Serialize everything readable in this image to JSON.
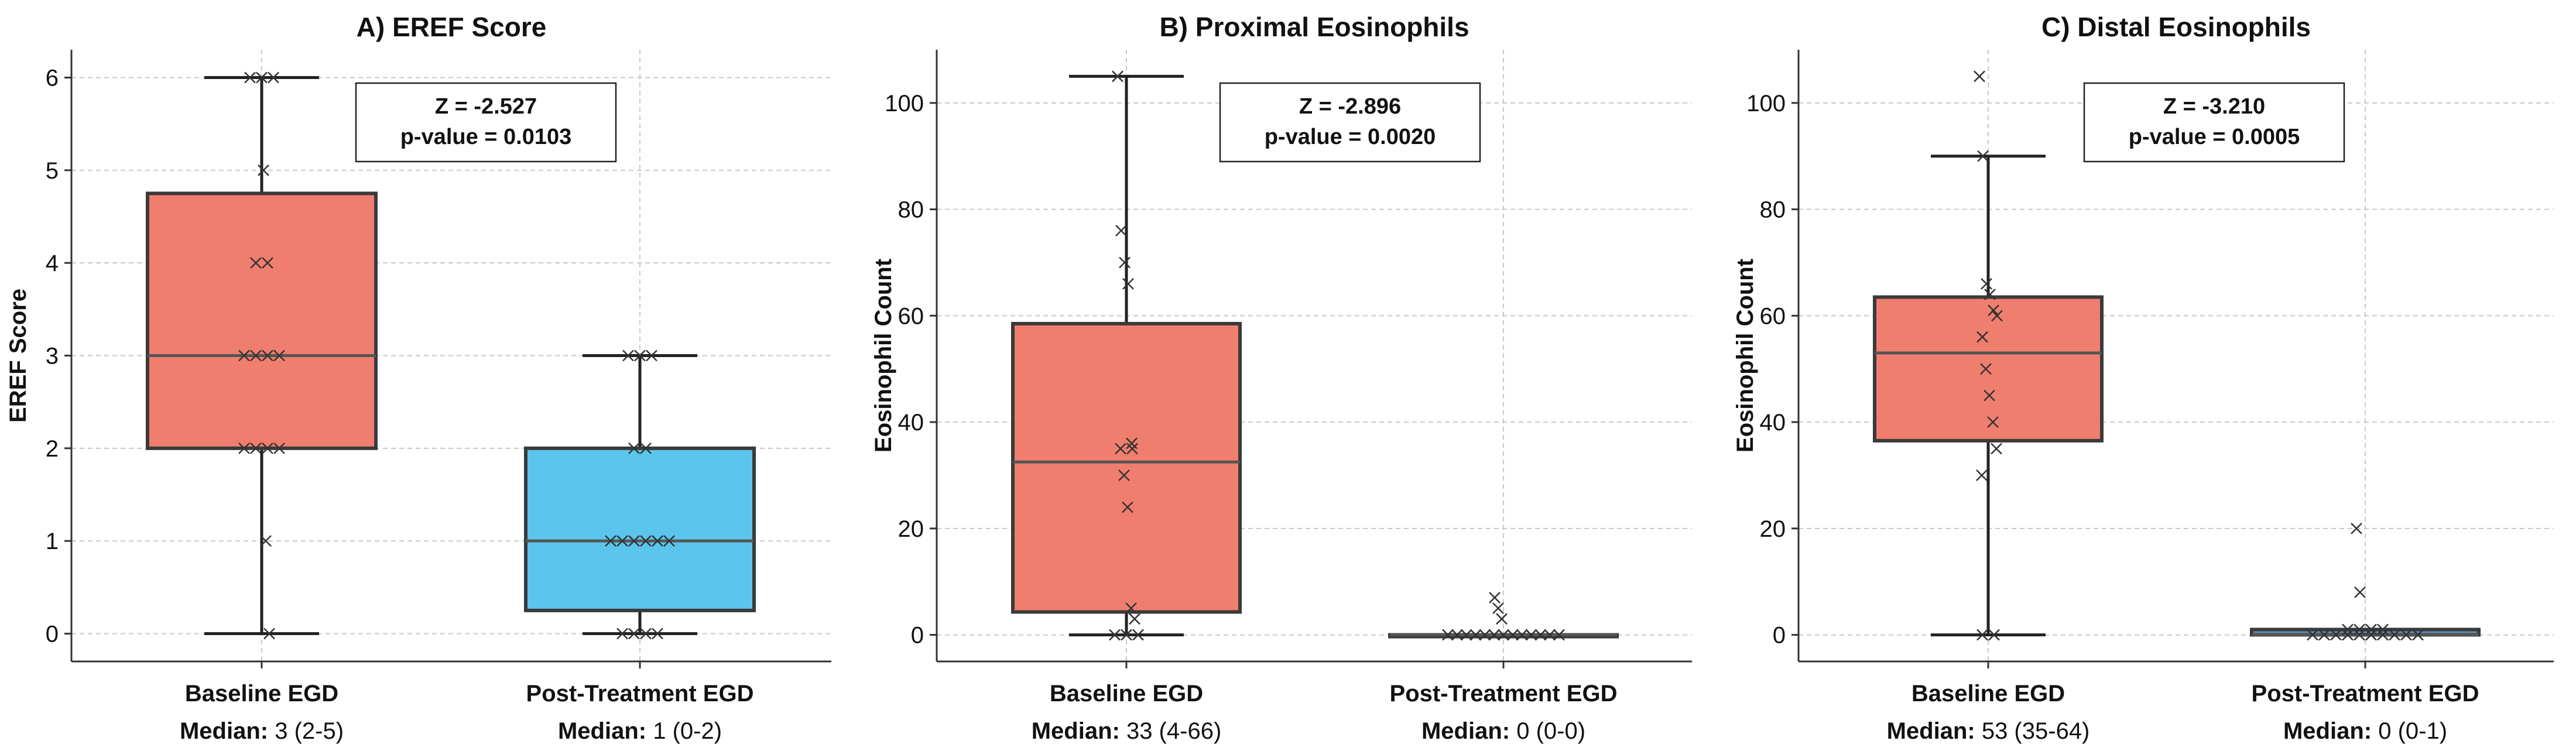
{
  "chart_data": [
    {
      "type": "box",
      "title": "A) EREF Score",
      "ylabel": "EREF Score",
      "ylim": [
        -0.3,
        6.3
      ],
      "yticks": [
        0,
        1,
        2,
        3,
        4,
        5,
        6
      ],
      "grid": true,
      "stat_box": {
        "z_text": "Z = -2.527",
        "p_text": "p-value = 0.0103"
      },
      "categories": [
        "Baseline EGD",
        "Post-Treatment EGD"
      ],
      "series": [
        {
          "category": "Baseline EGD",
          "color": "#f07e6e",
          "median_prefix": "Median:",
          "median_text": "3 (2-5)",
          "box": {
            "whisker_low": 0,
            "q1": 2,
            "median": 3,
            "q3": 4.75,
            "whisker_high": 6
          },
          "points": [
            6,
            6,
            6,
            5,
            4,
            4,
            3,
            3,
            3,
            3,
            2,
            2,
            2,
            2,
            1,
            0
          ]
        },
        {
          "category": "Post-Treatment EGD",
          "color": "#5bc5eb",
          "median_prefix": "Median:",
          "median_text": "1 (0-2)",
          "box": {
            "whisker_low": 0,
            "q1": 0.25,
            "median": 1,
            "q3": 2,
            "whisker_high": 3
          },
          "points": [
            3,
            3,
            3,
            2,
            2,
            1,
            1,
            1,
            1,
            1,
            1,
            0,
            0,
            0,
            0
          ]
        }
      ]
    },
    {
      "type": "box",
      "title": "B) Proximal Eosinophils",
      "ylabel": "Eosinophil Count",
      "ylim": [
        -5,
        110
      ],
      "yticks": [
        0,
        20,
        40,
        60,
        80,
        100
      ],
      "grid": true,
      "stat_box": {
        "z_text": "Z = -2.896",
        "p_text": "p-value = 0.0020"
      },
      "categories": [
        "Baseline EGD",
        "Post-Treatment EGD"
      ],
      "series": [
        {
          "category": "Baseline EGD",
          "color": "#f07e6e",
          "median_prefix": "Median:",
          "median_text": "33 (4-66)",
          "box": {
            "whisker_low": 0,
            "q1": 4.3,
            "median": 32.5,
            "q3": 58.5,
            "whisker_high": 105
          },
          "points": [
            105,
            76,
            70,
            66,
            36,
            35,
            35,
            30,
            24,
            5,
            3,
            0,
            0,
            0
          ]
        },
        {
          "category": "Post-Treatment EGD",
          "color": "#5bc5eb",
          "median_prefix": "Median:",
          "median_text": "0 (0-0)",
          "box": {
            "whisker_low": 0,
            "q1": 0,
            "median": 0,
            "q3": 0,
            "whisker_high": 0
          },
          "points": [
            7,
            5,
            3,
            0,
            0,
            0,
            0,
            0,
            0,
            0,
            0,
            0,
            0,
            0,
            0,
            0
          ]
        }
      ]
    },
    {
      "type": "box",
      "title": "C) Distal Eosinophils",
      "ylabel": "Eosinophil Count",
      "ylim": [
        -5,
        110
      ],
      "yticks": [
        0,
        20,
        40,
        60,
        80,
        100
      ],
      "grid": true,
      "stat_box": {
        "z_text": "Z = -3.210",
        "p_text": "p-value = 0.0005"
      },
      "categories": [
        "Baseline EGD",
        "Post-Treatment EGD"
      ],
      "series": [
        {
          "category": "Baseline EGD",
          "color": "#f07e6e",
          "median_prefix": "Median:",
          "median_text": "53 (35-64)",
          "box": {
            "whisker_low": 0,
            "q1": 36.5,
            "median": 53,
            "q3": 63.5,
            "whisker_high": 90
          },
          "points": [
            105,
            90,
            66,
            64,
            61,
            60,
            56,
            50,
            45,
            40,
            35,
            30,
            0,
            0
          ]
        },
        {
          "category": "Post-Treatment EGD",
          "color": "#5d8eb8",
          "median_prefix": "Median:",
          "median_text": "0 (0-1)",
          "box": {
            "whisker_low": 0,
            "q1": 0,
            "median": 0,
            "q3": 1,
            "whisker_high": 1
          },
          "points": [
            20,
            8,
            1,
            1,
            1,
            0,
            0,
            0,
            0,
            0,
            0,
            0,
            0,
            0,
            0,
            1
          ]
        }
      ]
    }
  ]
}
